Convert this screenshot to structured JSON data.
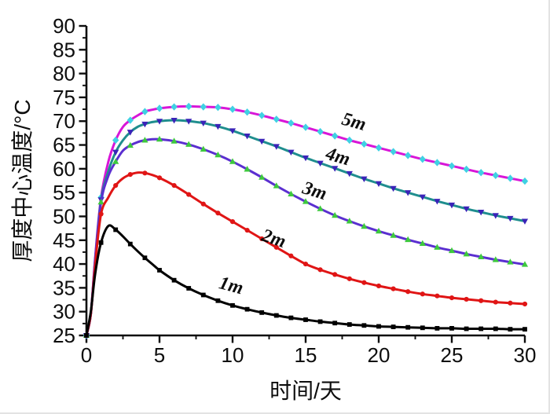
{
  "figure_title": "",
  "chart_data": {
    "type": "line",
    "title": "",
    "xlabel": "时间/天",
    "ylabel": "厚度中心温度/°C",
    "xlim": [
      0,
      30
    ],
    "ylim": [
      25,
      90
    ],
    "grid": false,
    "legend": "inline curve labels next to lines",
    "x_major_tick_step": 5,
    "x_minor_tick_step": 2.5,
    "y_major_tick_step": 5,
    "y_minor_tick_step": 2.5,
    "x_tick_labels": [
      "0",
      "5",
      "10",
      "15",
      "20",
      "25",
      "30"
    ],
    "y_tick_labels": [
      "25",
      "30",
      "35",
      "40",
      "45",
      "50",
      "55",
      "60",
      "65",
      "70",
      "75",
      "80",
      "85",
      "90"
    ],
    "axis_color": "#0d0d0d",
    "series": [
      {
        "name": "5m",
        "line_color": "#d816d8",
        "marker": "diamond",
        "marker_color": "#3fd1e3",
        "label_anchor": {
          "day": 18.2,
          "temp": 68.7,
          "rotate_deg": 16
        },
        "points": [
          [
            0,
            25
          ],
          [
            0.3,
            29.5
          ],
          [
            0.6,
            41.5
          ],
          [
            1,
            54
          ],
          [
            1.5,
            61.5
          ],
          [
            2,
            66
          ],
          [
            2.5,
            68.8
          ],
          [
            3,
            70.2
          ],
          [
            3.5,
            71.2
          ],
          [
            4,
            72
          ],
          [
            4.5,
            72.4
          ],
          [
            5,
            72.7
          ],
          [
            6,
            73
          ],
          [
            7,
            73.1
          ],
          [
            8,
            73
          ],
          [
            9,
            72.9
          ],
          [
            10,
            72.5
          ],
          [
            11,
            71.9
          ],
          [
            12,
            71.2
          ],
          [
            13,
            70.4
          ],
          [
            14,
            69.6
          ],
          [
            15,
            68.7
          ],
          [
            16,
            67.8
          ],
          [
            17,
            66.9
          ],
          [
            18,
            66
          ],
          [
            19,
            65.2
          ],
          [
            20,
            64.4
          ],
          [
            21,
            63.6
          ],
          [
            22,
            62.8
          ],
          [
            23,
            62
          ],
          [
            24,
            61.3
          ],
          [
            25,
            60.6
          ],
          [
            26,
            59.9
          ],
          [
            27,
            59.2
          ],
          [
            28,
            58.6
          ],
          [
            29,
            58
          ],
          [
            30,
            57.4
          ]
        ]
      },
      {
        "name": "4m",
        "line_color": "#1f8e8e",
        "marker": "triangle-down",
        "marker_color": "#3a23b8",
        "label_anchor": {
          "day": 17.1,
          "temp": 61.4,
          "rotate_deg": 16
        },
        "points": [
          [
            0,
            25
          ],
          [
            0.3,
            29.5
          ],
          [
            0.6,
            41
          ],
          [
            1,
            53.5
          ],
          [
            1.5,
            59.5
          ],
          [
            2,
            63.5
          ],
          [
            2.5,
            66
          ],
          [
            3,
            67.7
          ],
          [
            3.5,
            68.8
          ],
          [
            4,
            69.4
          ],
          [
            4.5,
            69.8
          ],
          [
            5,
            70
          ],
          [
            6,
            70.2
          ],
          [
            7,
            70
          ],
          [
            8,
            69.6
          ],
          [
            9,
            68.9
          ],
          [
            10,
            68
          ],
          [
            11,
            66.9
          ],
          [
            12,
            65.8
          ],
          [
            13,
            64.7
          ],
          [
            14,
            63.5
          ],
          [
            15,
            62.3
          ],
          [
            16,
            61.2
          ],
          [
            17,
            60.1
          ],
          [
            18,
            59
          ],
          [
            19,
            57.9
          ],
          [
            20,
            56.9
          ],
          [
            21,
            55.9
          ],
          [
            22,
            55
          ],
          [
            23,
            54.1
          ],
          [
            24,
            53.2
          ],
          [
            25,
            52.4
          ],
          [
            26,
            51.6
          ],
          [
            27,
            50.9
          ],
          [
            28,
            50.2
          ],
          [
            29,
            49.6
          ],
          [
            30,
            49
          ]
        ]
      },
      {
        "name": "3m",
        "line_color": "#5b2fd0",
        "marker": "triangle-up",
        "marker_color": "#3dc93d",
        "label_anchor": {
          "day": 15.5,
          "temp": 54.2,
          "rotate_deg": 17
        },
        "points": [
          [
            0,
            25
          ],
          [
            0.3,
            29.5
          ],
          [
            0.6,
            41
          ],
          [
            1,
            53
          ],
          [
            1.5,
            58.5
          ],
          [
            2,
            61.5
          ],
          [
            2.5,
            63.8
          ],
          [
            3,
            64.9
          ],
          [
            3.5,
            65.6
          ],
          [
            4,
            66
          ],
          [
            4.5,
            66.2
          ],
          [
            5,
            66.2
          ],
          [
            6,
            65.8
          ],
          [
            7,
            65.1
          ],
          [
            8,
            64.1
          ],
          [
            9,
            62.9
          ],
          [
            10,
            61.5
          ],
          [
            11,
            59.9
          ],
          [
            12,
            58.2
          ],
          [
            13,
            56.4
          ],
          [
            14,
            54.7
          ],
          [
            15,
            53.1
          ],
          [
            16,
            51.6
          ],
          [
            17,
            50.2
          ],
          [
            18,
            49
          ],
          [
            19,
            47.9
          ],
          [
            20,
            46.9
          ],
          [
            21,
            46
          ],
          [
            22,
            45.1
          ],
          [
            23,
            44.3
          ],
          [
            24,
            43.5
          ],
          [
            25,
            42.8
          ],
          [
            26,
            42.1
          ],
          [
            27,
            41.5
          ],
          [
            28,
            40.9
          ],
          [
            29,
            40.4
          ],
          [
            30,
            39.9
          ]
        ]
      },
      {
        "name": "2m",
        "line_color": "#e01515",
        "marker": "circle",
        "marker_color": "#e01515",
        "label_anchor": {
          "day": 12.7,
          "temp": 44.2,
          "rotate_deg": 18
        },
        "points": [
          [
            0,
            25
          ],
          [
            0.3,
            29.5
          ],
          [
            0.6,
            40
          ],
          [
            1,
            50.5
          ],
          [
            1.5,
            54
          ],
          [
            2,
            56.5
          ],
          [
            2.5,
            58
          ],
          [
            3,
            58.8
          ],
          [
            3.5,
            59.2
          ],
          [
            4,
            59.1
          ],
          [
            4.5,
            58.7
          ],
          [
            5,
            58.1
          ],
          [
            6,
            56.5
          ],
          [
            7,
            54.6
          ],
          [
            8,
            52.6
          ],
          [
            9,
            50.7
          ],
          [
            10,
            48.9
          ],
          [
            11,
            47.1
          ],
          [
            12,
            45.3
          ],
          [
            13,
            43.5
          ],
          [
            14,
            41.7
          ],
          [
            15,
            40
          ],
          [
            16,
            38.8
          ],
          [
            17,
            37.8
          ],
          [
            18,
            36.9
          ],
          [
            19,
            36.1
          ],
          [
            20,
            35.4
          ],
          [
            21,
            34.8
          ],
          [
            22,
            34.2
          ],
          [
            23,
            33.7
          ],
          [
            24,
            33.3
          ],
          [
            25,
            32.9
          ],
          [
            26,
            32.6
          ],
          [
            27,
            32.3
          ],
          [
            28,
            32
          ],
          [
            29,
            31.8
          ],
          [
            30,
            31.6
          ]
        ]
      },
      {
        "name": "1m",
        "line_color": "#000000",
        "marker": "square",
        "marker_color": "#000000",
        "label_anchor": {
          "day": 9.8,
          "temp": 34.3,
          "rotate_deg": 15
        },
        "points": [
          [
            0,
            25
          ],
          [
            0.3,
            30
          ],
          [
            0.6,
            38
          ],
          [
            1,
            44.5
          ],
          [
            1.5,
            48
          ],
          [
            2,
            47.2
          ],
          [
            2.5,
            45.8
          ],
          [
            3,
            44.2
          ],
          [
            3.5,
            42.7
          ],
          [
            4,
            41.3
          ],
          [
            4.5,
            40
          ],
          [
            5,
            38.7
          ],
          [
            6,
            36.6
          ],
          [
            7,
            34.9
          ],
          [
            8,
            33.5
          ],
          [
            9,
            32.3
          ],
          [
            10,
            31.3
          ],
          [
            11,
            30.5
          ],
          [
            12,
            29.8
          ],
          [
            13,
            29.2
          ],
          [
            14,
            28.7
          ],
          [
            15,
            28.3
          ],
          [
            16,
            27.9
          ],
          [
            17,
            27.6
          ],
          [
            18,
            27.3
          ],
          [
            19,
            27.1
          ],
          [
            20,
            26.9
          ],
          [
            21,
            26.8
          ],
          [
            22,
            26.7
          ],
          [
            23,
            26.6
          ],
          [
            24,
            26.5
          ],
          [
            25,
            26.5
          ],
          [
            26,
            26.4
          ],
          [
            27,
            26.4
          ],
          [
            28,
            26.4
          ],
          [
            29,
            26.3
          ],
          [
            30,
            26.3
          ]
        ]
      }
    ]
  }
}
